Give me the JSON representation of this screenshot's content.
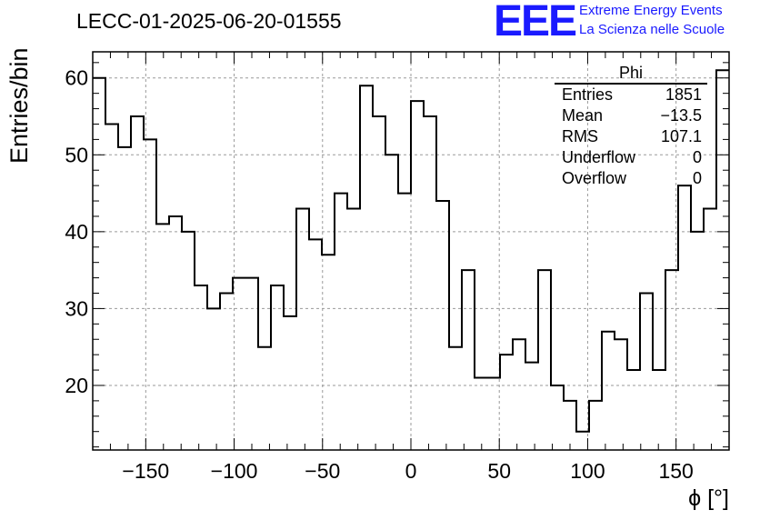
{
  "header": {
    "run_title": "LECC-01-2025-06-20-01555",
    "logo_text": "EEE",
    "logo_line1": "Extreme Energy Events",
    "logo_line2": "La Scienza nelle Scuole"
  },
  "stats_box": {
    "title": "Phi",
    "rows": [
      {
        "label": "Entries",
        "value": "1851"
      },
      {
        "label": "Mean",
        "value": "−13.5"
      },
      {
        "label": "RMS",
        "value": "107.1"
      },
      {
        "label": "Underflow",
        "value": "0"
      },
      {
        "label": "Overflow",
        "value": "0"
      }
    ]
  },
  "colors": {
    "histogram": "#000000",
    "grid": "#9a9a9a",
    "logo": "#1a1aff"
  },
  "chart_data": {
    "type": "bar",
    "subtype": "step-histogram",
    "title": "LECC-01-2025-06-20-01555",
    "xlabel": "ϕ [°]",
    "ylabel": "Entries/bin",
    "xlim": [
      -180,
      180
    ],
    "ylim": [
      11.6,
      63.4
    ],
    "bin_width": 7.2,
    "bin_edges_start": -180,
    "x_ticks": [
      -150,
      -100,
      -50,
      0,
      50,
      100,
      150
    ],
    "x_tick_labels": [
      "−150",
      "−100",
      "−50",
      "0",
      "50",
      "100",
      "150"
    ],
    "y_ticks": [
      20,
      30,
      40,
      50,
      60
    ],
    "y_tick_labels": [
      "20",
      "30",
      "40",
      "50",
      "60"
    ],
    "grid": true,
    "values": [
      60,
      54,
      51,
      55,
      52,
      41,
      42,
      40,
      33,
      30,
      32,
      34,
      34,
      25,
      33,
      29,
      43,
      39,
      37,
      45,
      43,
      59,
      55,
      50,
      45,
      57,
      55,
      44,
      25,
      35,
      21,
      21,
      24,
      26,
      23,
      35,
      20,
      18,
      14,
      18,
      27,
      26,
      22,
      32,
      22,
      35,
      46,
      40,
      43,
      61
    ]
  }
}
